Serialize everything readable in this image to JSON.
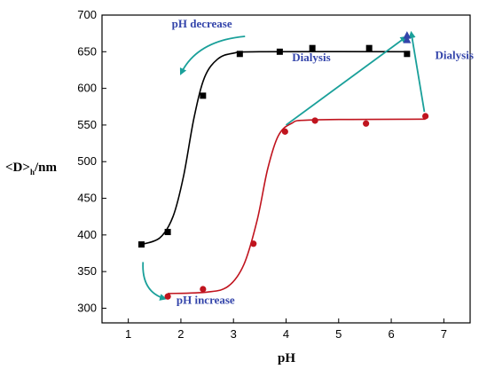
{
  "chart_data": {
    "type": "scatter",
    "title": "",
    "xlabel": "pH",
    "ylabel_main": "<D>",
    "ylabel_sub": "h",
    "ylabel_tail": "/nm",
    "xlim": [
      0.5,
      7.5
    ],
    "ylim": [
      280,
      700
    ],
    "xticks": [
      1,
      2,
      3,
      4,
      5,
      6,
      7
    ],
    "yticks": [
      300,
      350,
      400,
      450,
      500,
      550,
      600,
      650,
      700
    ],
    "grid": false,
    "series": [
      {
        "color": "#000000",
        "marker": "square",
        "points": [
          {
            "x": 1.25,
            "y": 387
          },
          {
            "x": 1.75,
            "y": 404
          },
          {
            "x": 2.42,
            "y": 590
          },
          {
            "x": 3.12,
            "y": 647
          },
          {
            "x": 3.88,
            "y": 650
          },
          {
            "x": 4.5,
            "y": 655
          },
          {
            "x": 5.58,
            "y": 655
          },
          {
            "x": 6.3,
            "y": 647
          }
        ],
        "fit": [
          [
            1.25,
            387
          ],
          [
            1.6,
            396
          ],
          [
            1.85,
            425
          ],
          [
            2.05,
            480
          ],
          [
            2.25,
            560
          ],
          [
            2.45,
            615
          ],
          [
            2.7,
            640
          ],
          [
            3.0,
            648
          ],
          [
            3.5,
            650
          ],
          [
            6.3,
            650
          ]
        ]
      },
      {
        "color": "#c0141e",
        "marker": "circle",
        "points": [
          {
            "x": 1.75,
            "y": 316
          },
          {
            "x": 2.42,
            "y": 326
          },
          {
            "x": 3.38,
            "y": 388
          },
          {
            "x": 3.98,
            "y": 541
          },
          {
            "x": 4.55,
            "y": 556
          },
          {
            "x": 5.52,
            "y": 552
          },
          {
            "x": 6.65,
            "y": 562
          }
        ],
        "fit": [
          [
            1.75,
            320
          ],
          [
            2.5,
            322
          ],
          [
            2.9,
            330
          ],
          [
            3.2,
            360
          ],
          [
            3.45,
            420
          ],
          [
            3.65,
            490
          ],
          [
            3.85,
            535
          ],
          [
            4.1,
            552
          ],
          [
            4.5,
            557
          ],
          [
            6.65,
            558
          ]
        ]
      },
      {
        "color": "#3344aa",
        "marker": "triangle",
        "points": [
          {
            "x": 6.3,
            "y": 672
          },
          {
            "x": 6.3,
            "y": 666
          }
        ]
      }
    ],
    "annotations": [
      {
        "text": "pH decrease",
        "x": 2.4,
        "y": 683,
        "color": "#3344aa"
      },
      {
        "text": "Dialysis",
        "x": 4.48,
        "y": 637,
        "color": "#3344aa"
      },
      {
        "text": "Dialysis",
        "x": 7.2,
        "y": 640,
        "color": "#3344aa"
      },
      {
        "text": "pH increase",
        "x": 2.47,
        "y": 306,
        "color": "#3344aa"
      }
    ],
    "arrows": [
      {
        "kind": "curved",
        "from": [
          3.22,
          671
        ],
        "control": [
          2.3,
          665
        ],
        "to": [
          2.0,
          620
        ],
        "color": "#1aa09a"
      },
      {
        "kind": "straight",
        "from": [
          4.0,
          550
        ],
        "to": [
          6.28,
          670
        ],
        "color": "#1aa09a"
      },
      {
        "kind": "straight",
        "from": [
          6.63,
          568
        ],
        "to": [
          6.38,
          676
        ],
        "color": "#1aa09a"
      },
      {
        "kind": "curved",
        "from": [
          1.28,
          363
        ],
        "control": [
          1.25,
          322
        ],
        "to": [
          1.7,
          313
        ],
        "color": "#1aa09a"
      }
    ]
  }
}
